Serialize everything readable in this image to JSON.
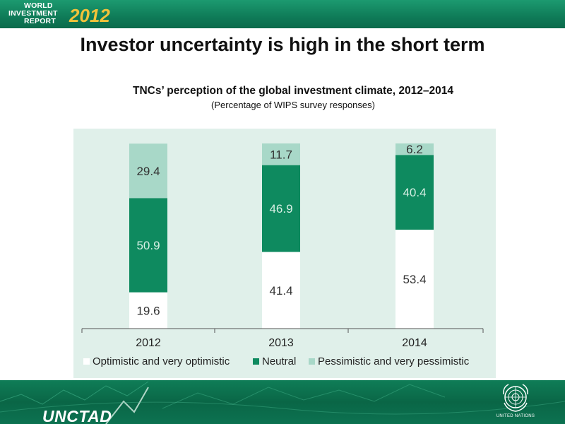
{
  "header": {
    "logo_line1": "WORLD",
    "logo_line2": "INVESTMENT",
    "logo_line3": "REPORT",
    "logo_year": "2012"
  },
  "slide_title": "Investor uncertainty is high in the short term",
  "chart_data": {
    "type": "bar",
    "stacked": true,
    "title": "TNCs’ perception of the global investment climate, 2012–2014",
    "subtitle": "(Percentage of WIPS survey responses)",
    "categories": [
      "2012",
      "2013",
      "2014"
    ],
    "series": [
      {
        "name": "Optimistic and very optimistic",
        "values": [
          19.6,
          41.4,
          53.4
        ],
        "color": "#ffffff",
        "label_color": "#333333"
      },
      {
        "name": "Neutral",
        "values": [
          50.9,
          46.9,
          40.4
        ],
        "color": "#0e8a5f",
        "label_color": "#d7efe4"
      },
      {
        "name": "Pessimistic and very pessimistic",
        "values": [
          29.4,
          11.7,
          6.2
        ],
        "color": "#a8d8c8",
        "label_color": "#333333"
      }
    ],
    "ylim": [
      0,
      100
    ],
    "grid": false,
    "legend_position": "bottom",
    "background": "#e0f0ea"
  },
  "footer": {
    "org": "UNCTAD",
    "un_label": "UNITED NATIONS"
  }
}
